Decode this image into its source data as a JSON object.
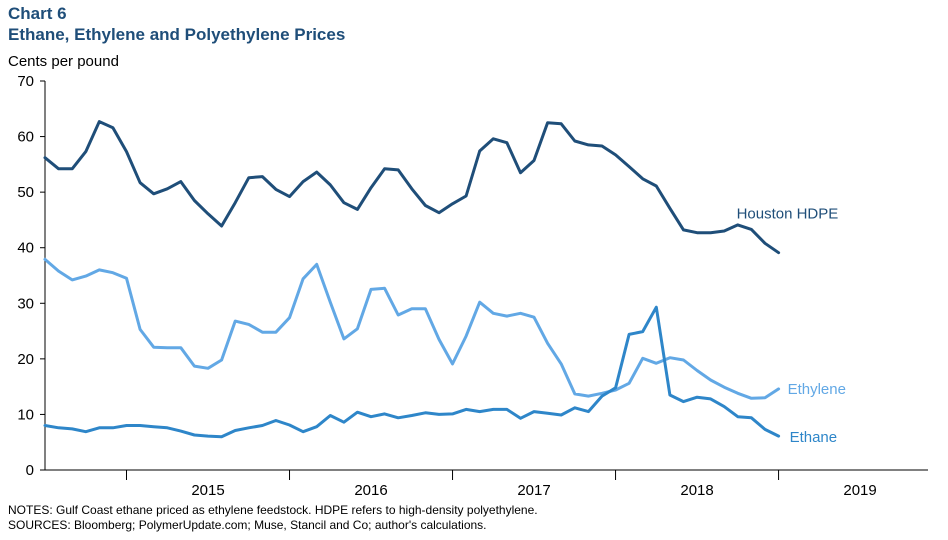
{
  "chart_label": "Chart 6",
  "chart_title": "Ethane, Ethylene and Polyethylene Prices",
  "notes": "NOTES: Gulf Coast ethane priced as ethylene feedstock. HDPE refers to high-density polyethylene.",
  "sources": "SOURCES: Bloomberg; PolymerUpdate.com; Muse, Stancil and Co; author's calculations.",
  "chart_data": {
    "type": "line",
    "title": "Ethane, Ethylene and Polyethylene Prices",
    "ylabel": "Cents per pound",
    "xlabel": "",
    "ylim": [
      0,
      70
    ],
    "yticks": [
      0,
      10,
      20,
      30,
      40,
      50,
      60,
      70
    ],
    "x_range": [
      "2014-07",
      "2019-12"
    ],
    "year_labels": [
      "2015",
      "2016",
      "2017",
      "2018",
      "2019"
    ],
    "grid": false,
    "legend": "inline labels at series ends",
    "x": [
      "2014-07",
      "2014-08",
      "2014-09",
      "2014-10",
      "2014-11",
      "2014-12",
      "2015-01",
      "2015-02",
      "2015-03",
      "2015-04",
      "2015-05",
      "2015-06",
      "2015-07",
      "2015-08",
      "2015-09",
      "2015-10",
      "2015-11",
      "2015-12",
      "2016-01",
      "2016-02",
      "2016-03",
      "2016-04",
      "2016-05",
      "2016-06",
      "2016-07",
      "2016-08",
      "2016-09",
      "2016-10",
      "2016-11",
      "2016-12",
      "2017-01",
      "2017-02",
      "2017-03",
      "2017-04",
      "2017-05",
      "2017-06",
      "2017-07",
      "2017-08",
      "2017-09",
      "2017-10",
      "2017-11",
      "2017-12",
      "2018-01",
      "2018-02",
      "2018-03",
      "2018-04",
      "2018-05",
      "2018-06",
      "2018-07",
      "2018-08",
      "2018-09",
      "2018-10",
      "2018-11",
      "2018-12",
      "2019-01"
    ],
    "series": [
      {
        "name": "Houston HDPE",
        "color": "#1f4e79",
        "values": [
          56.2,
          54.2,
          54.2,
          57.3,
          62.7,
          61.6,
          57.3,
          51.7,
          49.7,
          50.6,
          51.9,
          48.5,
          46.1,
          43.9,
          48.1,
          52.6,
          52.8,
          50.5,
          49.2,
          51.9,
          53.6,
          51.3,
          48.1,
          46.9,
          50.8,
          54.2,
          54.0,
          50.6,
          47.6,
          46.3,
          47.9,
          49.3,
          57.4,
          59.6,
          58.9,
          53.5,
          55.7,
          62.5,
          62.3,
          59.2,
          58.5,
          58.3,
          56.7,
          54.6,
          52.4,
          51.1,
          47.1,
          43.2,
          42.7,
          42.7,
          43.0,
          44.1,
          43.3,
          40.8,
          39.1
        ]
      },
      {
        "name": "Ethylene",
        "color": "#62a8e5",
        "values": [
          37.9,
          35.8,
          34.2,
          34.9,
          36.0,
          35.5,
          34.5,
          25.3,
          22.1,
          22.0,
          22.0,
          18.7,
          18.3,
          19.8,
          26.8,
          26.2,
          24.8,
          24.8,
          27.4,
          34.4,
          37.0,
          30.2,
          23.6,
          25.4,
          32.5,
          32.7,
          27.9,
          29.0,
          29.0,
          23.5,
          19.1,
          24.1,
          30.2,
          28.2,
          27.7,
          28.2,
          27.5,
          22.8,
          19.1,
          13.7,
          13.3,
          13.8,
          14.4,
          15.6,
          20.1,
          19.2,
          20.2,
          19.8,
          17.9,
          16.2,
          14.9,
          13.8,
          12.9,
          13.0,
          14.6
        ]
      },
      {
        "name": "Ethane",
        "color": "#2e86c9",
        "values": [
          8.0,
          7.6,
          7.4,
          6.9,
          7.6,
          7.6,
          8.0,
          8.0,
          7.8,
          7.6,
          7.0,
          6.3,
          6.1,
          6.0,
          7.1,
          7.6,
          8.0,
          8.9,
          8.1,
          6.9,
          7.8,
          9.8,
          8.6,
          10.4,
          9.6,
          10.1,
          9.4,
          9.8,
          10.3,
          10.0,
          10.1,
          10.9,
          10.5,
          10.9,
          10.9,
          9.3,
          10.5,
          10.2,
          9.9,
          11.2,
          10.5,
          13.3,
          14.8,
          24.4,
          24.9,
          29.3,
          13.5,
          12.3,
          13.1,
          12.8,
          11.4,
          9.6,
          9.4,
          7.3,
          6.1
        ]
      }
    ]
  }
}
